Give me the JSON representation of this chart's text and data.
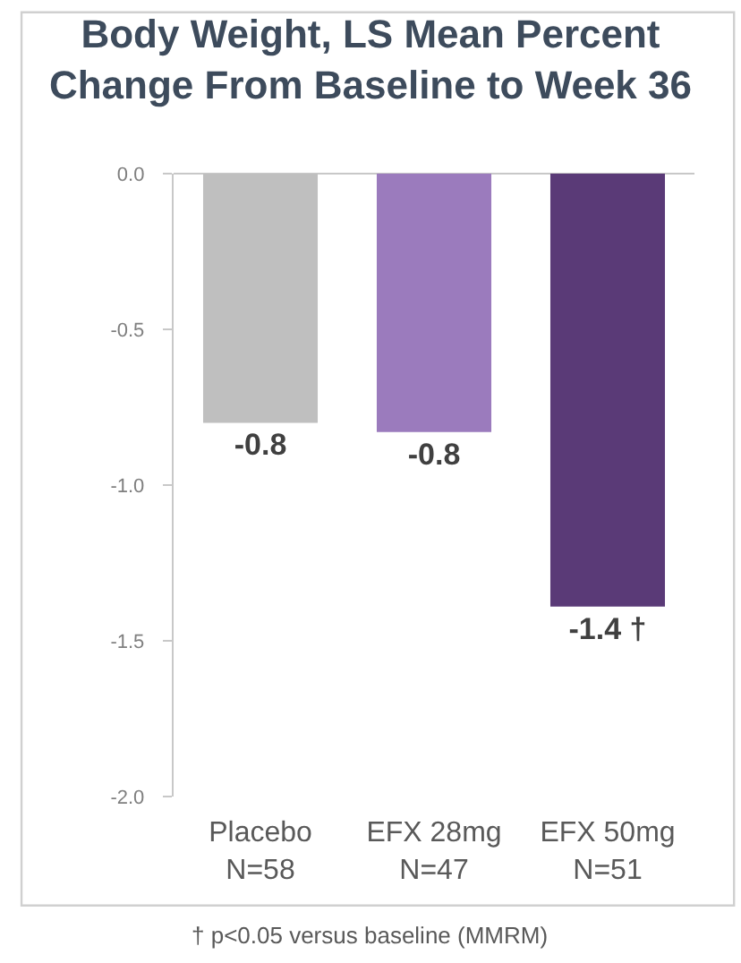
{
  "chart_data": {
    "type": "bar",
    "title": "Body Weight, LS Mean Percent\nChange From Baseline to Week 36",
    "categories": [
      "Placebo\nN=58",
      "EFX 28mg\nN=47",
      "EFX 50mg\nN=51"
    ],
    "values": [
      -0.8,
      -0.83,
      -1.39
    ],
    "colors": [
      "#bfbfbf",
      "#9b7bbd",
      "#5a3a77"
    ],
    "value_labels": [
      "-0.8",
      "-0.8",
      "-1.4 †"
    ],
    "ylim": [
      -2.0,
      0.0
    ],
    "yticks": [
      {
        "value": 0.0,
        "label": "0.0"
      },
      {
        "value": -0.5,
        "label": "-0.5"
      },
      {
        "value": -1.0,
        "label": "-1.0"
      },
      {
        "value": -1.5,
        "label": "-1.5"
      },
      {
        "value": -2.0,
        "label": "-2.0"
      }
    ],
    "annotations": [
      "† p<0.05 versus baseline (MMRM)"
    ]
  }
}
